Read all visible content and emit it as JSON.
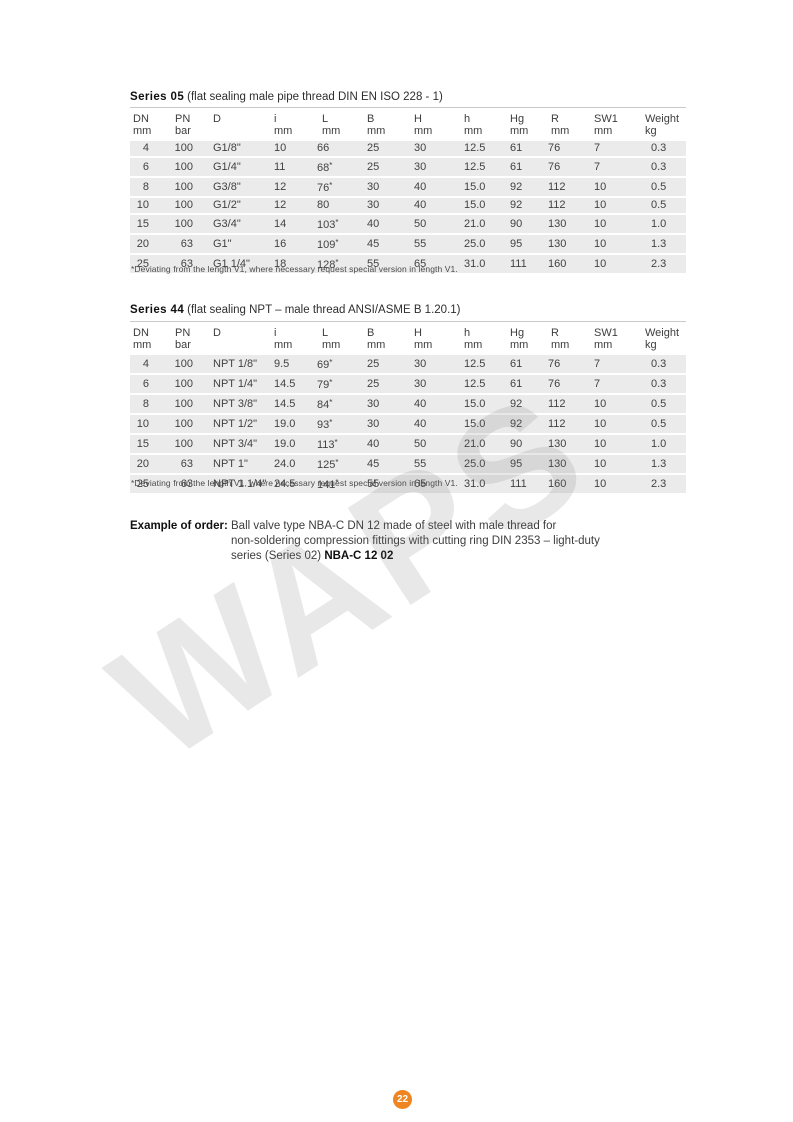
{
  "watermark": "WAPS",
  "page_number": "22",
  "colors": {
    "accent_orange": "#ef8521",
    "row_background": "#ebebeb",
    "table_rule_gray": "#c9c9c9",
    "watermark_gray": "#d9d9d9"
  },
  "series05": {
    "title": "Series 05",
    "subtitle": "(flat sealing male pipe thread DIN EN ISO 228 - 1)",
    "columns": [
      {
        "name": "DN",
        "unit": "mm"
      },
      {
        "name": "PN",
        "unit": "bar"
      },
      {
        "name": "D",
        "unit": ""
      },
      {
        "name": "i",
        "unit": "mm"
      },
      {
        "name": "L",
        "unit": "mm"
      },
      {
        "name": "B",
        "unit": "mm"
      },
      {
        "name": "H",
        "unit": "mm"
      },
      {
        "name": "h",
        "unit": "mm"
      },
      {
        "name": "Hg",
        "unit": "mm"
      },
      {
        "name": "R",
        "unit": "mm"
      },
      {
        "name": "SW1",
        "unit": "mm"
      },
      {
        "name": "Weight",
        "unit": "kg"
      }
    ],
    "rows": [
      [
        "4",
        "100",
        "G1/8\"",
        "10",
        "66",
        "25",
        "30",
        "12.5",
        "61",
        "76",
        "7",
        "0.3"
      ],
      [
        "6",
        "100",
        "G1/4\"",
        "11",
        "68*",
        "25",
        "30",
        "12.5",
        "61",
        "76",
        "7",
        "0.3"
      ],
      [
        "8",
        "100",
        "G3/8\"",
        "12",
        "76*",
        "30",
        "40",
        "15.0",
        "92",
        "112",
        "10",
        "0.5"
      ],
      [
        "10",
        "100",
        "G1/2\"",
        "12",
        "80",
        "30",
        "40",
        "15.0",
        "92",
        "112",
        "10",
        "0.5"
      ],
      [
        "15",
        "100",
        "G3/4\"",
        "14",
        "103*",
        "40",
        "50",
        "21.0",
        "90",
        "130",
        "10",
        "1.0"
      ],
      [
        "20",
        "63",
        "G1\"",
        "16",
        "109*",
        "45",
        "55",
        "25.0",
        "95",
        "130",
        "10",
        "1.3"
      ],
      [
        "25",
        "63",
        "G1 1/4\"",
        "18",
        "128*",
        "55",
        "65",
        "31.0",
        "111",
        "160",
        "10",
        "2.3"
      ]
    ],
    "footnote": "*Deviating from the length V1, where necessary request special version in length V1."
  },
  "series44": {
    "title": "Series 44",
    "subtitle": "(flat sealing NPT – male thread ANSI/ASME B 1.20.1)",
    "columns": [
      {
        "name": "DN",
        "unit": "mm"
      },
      {
        "name": "PN",
        "unit": "bar"
      },
      {
        "name": "D",
        "unit": ""
      },
      {
        "name": "i",
        "unit": "mm"
      },
      {
        "name": "L",
        "unit": "mm"
      },
      {
        "name": "B",
        "unit": "mm"
      },
      {
        "name": "H",
        "unit": "mm"
      },
      {
        "name": "h",
        "unit": "mm"
      },
      {
        "name": "Hg",
        "unit": "mm"
      },
      {
        "name": "R",
        "unit": "mm"
      },
      {
        "name": "SW1",
        "unit": "mm"
      },
      {
        "name": "Weight",
        "unit": "kg"
      }
    ],
    "rows": [
      [
        "4",
        "100",
        "NPT 1/8\"",
        "9.5",
        "69*",
        "25",
        "30",
        "12.5",
        "61",
        "76",
        "7",
        "0.3"
      ],
      [
        "6",
        "100",
        "NPT 1/4\"",
        "14.5",
        "79*",
        "25",
        "30",
        "12.5",
        "61",
        "76",
        "7",
        "0.3"
      ],
      [
        "8",
        "100",
        "NPT 3/8\"",
        "14.5",
        "84*",
        "30",
        "40",
        "15.0",
        "92",
        "112",
        "10",
        "0.5"
      ],
      [
        "10",
        "100",
        "NPT 1/2\"",
        "19.0",
        "93*",
        "30",
        "40",
        "15.0",
        "92",
        "112",
        "10",
        "0.5"
      ],
      [
        "15",
        "100",
        "NPT 3/4\"",
        "19.0",
        "113*",
        "40",
        "50",
        "21.0",
        "90",
        "130",
        "10",
        "1.0"
      ],
      [
        "20",
        "63",
        "NPT 1\"",
        "24.0",
        "125*",
        "45",
        "55",
        "25.0",
        "95",
        "130",
        "10",
        "1.3"
      ],
      [
        "25",
        "63",
        "NPT 1 1/4\"",
        "24.5",
        "141*",
        "55",
        "65",
        "31.0",
        "111",
        "160",
        "10",
        "2.3"
      ]
    ],
    "footnote": "*Deviating from the length V1, where necessary request special version in length V1."
  },
  "example": {
    "label": "Example of order:",
    "line1": "Ball valve type NBA-C DN 12 made of steel with male thread for",
    "line2": "non-soldering compression fittings with cutting ring DIN 2353 – light-duty",
    "line3_prefix": "series (Series 02) ",
    "line3_bold": "NBA-C 12 02"
  }
}
